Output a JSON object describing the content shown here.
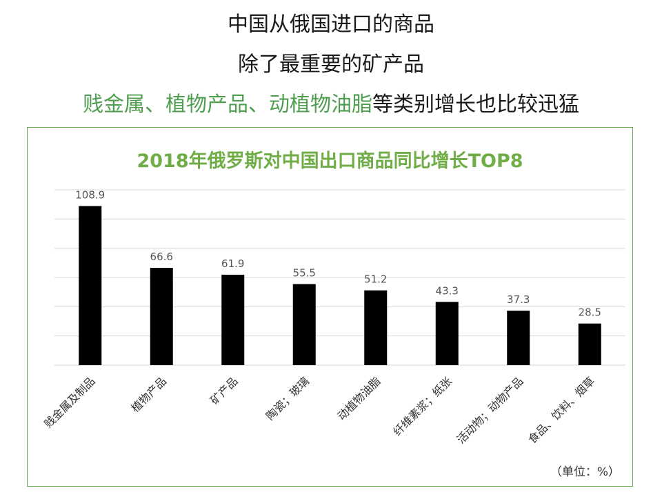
{
  "headlines": {
    "line1": "中国从俄国进口的商品",
    "line2": "除了最重要的矿产品",
    "line3_highlight": "贱金属、植物产品、动植物油脂",
    "line3_rest": "等类别增长也比较迅猛"
  },
  "colors": {
    "accent_green": "#70ad47",
    "headline_green": "#4f9e50",
    "bar": "#000000",
    "grid": "#d9d9d9"
  },
  "chart_data": {
    "type": "bar",
    "title": "2018年俄罗斯对中国出口商品同比增长TOP8",
    "unit_label": "（单位：%）",
    "categories": [
      "贱金属及制品",
      "植物产品",
      "矿产品",
      "陶瓷；玻璃",
      "动植物油脂",
      "纤维素浆；纸张",
      "活动物；动物产品",
      "食品、饮料、烟草"
    ],
    "values": [
      108.9,
      66.6,
      61.9,
      55.5,
      51.2,
      43.3,
      37.3,
      28.5
    ],
    "value_labels": [
      "108.9",
      "66.6",
      "61.9",
      "55.5",
      "51.2",
      "43.3",
      "37.3",
      "28.5"
    ],
    "ylim": [
      0,
      120
    ],
    "grid": true,
    "y_tick_labels_shown": false
  }
}
